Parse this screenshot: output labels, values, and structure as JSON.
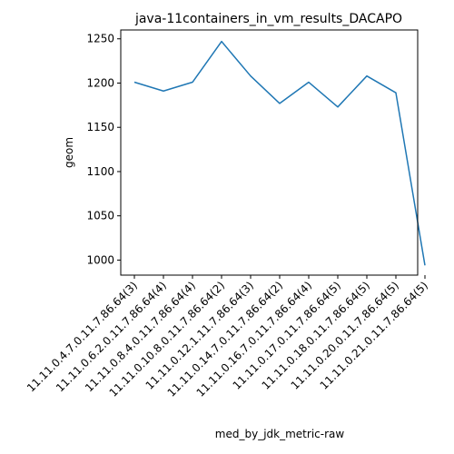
{
  "chart_data": {
    "type": "line",
    "title": "java-11containers_in_vm_results_DACAPO",
    "xlabel": "med_by_jdk_metric-raw",
    "ylabel": "geom",
    "categories": [
      "11.11.0.4.7.0.11.7.86.64(3)",
      "11.11.0.6.2.0.11.7.86.64(4)",
      "11.11.0.8.4.0.11.7.86.64(4)",
      "11.11.0.10.8.0.11.7.86.64(2)",
      "11.11.0.12.1.11.7.86.64(3)",
      "11.11.0.14.7.0.11.7.86.64(2)",
      "11.11.0.16.7.0.11.7.86.64(4)",
      "11.11.0.17.0.11.7.86.64(5)",
      "11.11.0.18.0.11.7.86.64(5)",
      "11.11.0.20.0.11.7.86.64(5)",
      "11.11.0.21.0.11.7.86.64(5)"
    ],
    "series": [
      {
        "values": [
          1201,
          1191,
          1201,
          1247,
          1208,
          1177,
          1201,
          1173,
          1208,
          1189,
          994
        ],
        "color": "#1f77b4"
      }
    ],
    "ylim": [
      983,
      1260
    ],
    "yticks": [
      1000,
      1050,
      1100,
      1150,
      1200,
      1250
    ],
    "grid": false,
    "legend": "none"
  }
}
